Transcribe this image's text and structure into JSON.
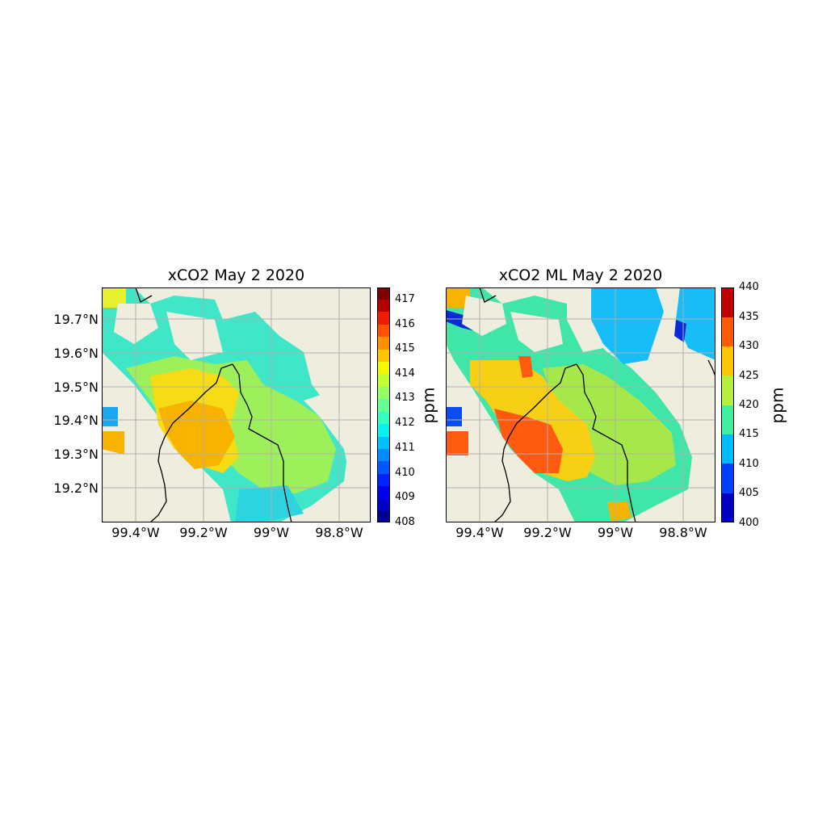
{
  "left_panel": {
    "title": "xCO2 May 2 2020",
    "colorbar": {
      "unit": "ppm",
      "ticks": [
        "417",
        "416",
        "415",
        "414",
        "413",
        "412",
        "411",
        "410",
        "409",
        "408"
      ]
    }
  },
  "right_panel": {
    "title": "xCO2 ML May 2 2020",
    "colorbar": {
      "unit": "ppm",
      "ticks": [
        "440",
        "435",
        "430",
        "425",
        "420",
        "415",
        "410",
        "405",
        "400"
      ]
    }
  },
  "lat_labels": [
    "19.7°N",
    "19.6°N",
    "19.5°N",
    "19.4°N",
    "19.3°N",
    "19.2°N"
  ],
  "lon_labels": [
    "99.4°W",
    "99.2°W",
    "99°W",
    "98.8°W"
  ],
  "colors": {
    "land": "#efedde",
    "grid": "#b0b0b0",
    "border": "#000000"
  }
}
